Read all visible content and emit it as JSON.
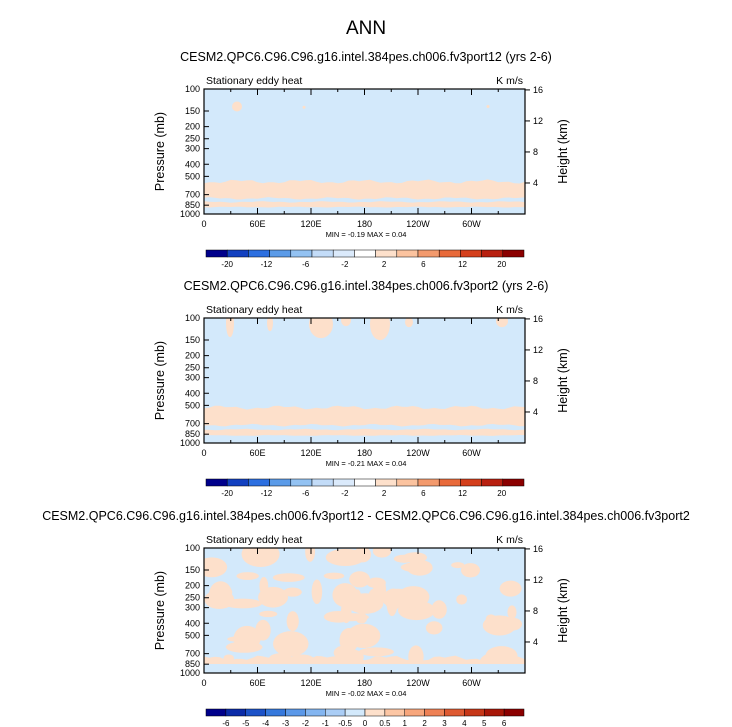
{
  "figure_title": "ANN",
  "chart_data": [
    {
      "type": "heatmap",
      "title": "CESM2.QPC6.C96.C96.g16.intel.384pes.ch006.fv3port12 (yrs 2-6)",
      "left_label": "Stationary eddy heat",
      "right_label": "K m/s",
      "ylabel": "Pressure (mb)",
      "y2label": "Height (km)",
      "x_ticks": [
        "0",
        "60E",
        "120E",
        "180",
        "120W",
        "60W"
      ],
      "y_ticks": [
        "100",
        "150",
        "200",
        "250",
        "300",
        "400",
        "500",
        "700",
        "850",
        "1000"
      ],
      "y2_ticks": [
        "4",
        "8",
        "12",
        "16"
      ],
      "stats": "MIN = -0.19  MAX =  0.04",
      "colorbar_labels": [
        "-20",
        "-12",
        "-6",
        "-2",
        "2",
        "6",
        "12",
        "20"
      ],
      "field": {
        "background_level": "-2 to 2 (negative)",
        "positive_band_hpa": [
          550,
          750
        ],
        "surface_band_hpa": [
          800,
          880
        ]
      }
    },
    {
      "type": "heatmap",
      "title": "CESM2.QPC6.C96.C96.g16.intel.384pes.ch006.fv3port2 (yrs 2-6)",
      "left_label": "Stationary eddy heat",
      "right_label": "K m/s",
      "ylabel": "Pressure (mb)",
      "y2label": "Height (km)",
      "x_ticks": [
        "0",
        "60E",
        "120E",
        "180",
        "120W",
        "60W"
      ],
      "y_ticks": [
        "100",
        "150",
        "200",
        "250",
        "300",
        "400",
        "500",
        "700",
        "850",
        "1000"
      ],
      "y2_ticks": [
        "4",
        "8",
        "12",
        "16"
      ],
      "stats": "MIN = -0.21  MAX =  0.04",
      "colorbar_labels": [
        "-20",
        "-12",
        "-6",
        "-2",
        "2",
        "6",
        "12",
        "20"
      ],
      "field": {
        "background_level": "-2 to 2 (negative)",
        "positive_band_hpa": [
          520,
          720
        ],
        "surface_band_hpa": [
          780,
          870
        ]
      }
    },
    {
      "type": "heatmap",
      "title": "CESM2.QPC6.C96.C96.g16.intel.384pes.ch006.fv3port12 - CESM2.QPC6.C96.C96.g16.intel.384pes.ch006.fv3port2",
      "left_label": "Stationary eddy heat",
      "right_label": "K m/s",
      "ylabel": "Pressure (mb)",
      "y2label": "Height (km)",
      "x_ticks": [
        "0",
        "60E",
        "120E",
        "180",
        "120W",
        "60W"
      ],
      "y_ticks": [
        "100",
        "150",
        "200",
        "250",
        "300",
        "400",
        "500",
        "700",
        "850",
        "1000"
      ],
      "y2_ticks": [
        "4",
        "8",
        "12",
        "16"
      ],
      "stats": "MIN = -0.02  MAX =  0.04",
      "colorbar_labels": [
        "-6",
        "-5",
        "-4",
        "-3",
        "-2",
        "-1",
        "-0.5",
        "0",
        "0.5",
        "1",
        "2",
        "3",
        "4",
        "5",
        "6"
      ],
      "field": {
        "background_level": "-0.5 to 0 (negative)",
        "pattern": "patchy positive and negative"
      }
    }
  ],
  "colors": {
    "neg_fill": "#d3e9fb",
    "pos_fill": "#fde0cb",
    "colorbar_8": [
      "#00008b",
      "#1240c0",
      "#2c6fe0",
      "#5b9be8",
      "#93c2f2",
      "#c3dcf8",
      "#dbeafb",
      "#ffffff",
      "#fde0cb",
      "#fbc39f",
      "#f39a6d",
      "#e86a3a",
      "#d43f1c",
      "#b82010",
      "#8b0000"
    ],
    "colorbar_15": [
      "#00008b",
      "#0b2ba8",
      "#1c52c8",
      "#3578dc",
      "#5b98e8",
      "#83b5f0",
      "#aacdf5",
      "#d3e9fb",
      "#fde0cb",
      "#fcc6a4",
      "#f7a67c",
      "#ee8155",
      "#de5a32",
      "#c63718",
      "#a81708",
      "#8b0000"
    ]
  }
}
